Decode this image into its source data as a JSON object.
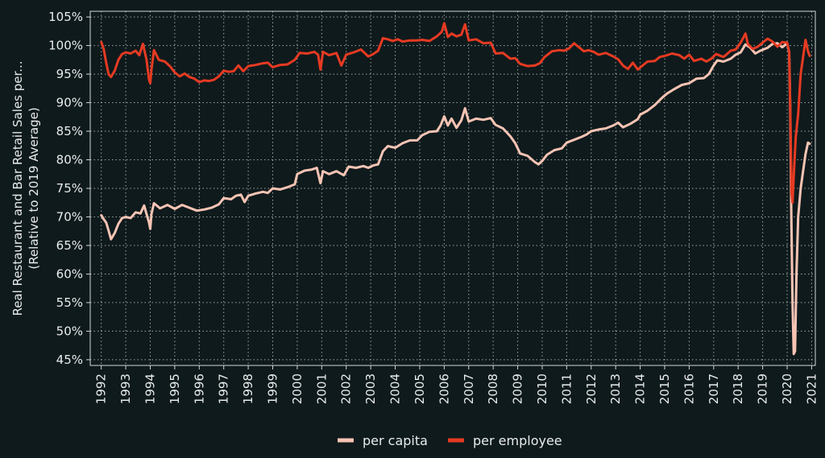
{
  "chart_data": {
    "type": "line",
    "title": "",
    "ylabel": "Real Restaurant and Bar Retail Sales per...",
    "ylabel2": "(Relative to 2019 Average)",
    "xlabel": "",
    "xlim": [
      1991.55,
      2021.15
    ],
    "ylim": [
      44,
      106
    ],
    "x_ticks": [
      1992,
      1993,
      1994,
      1995,
      1996,
      1997,
      1998,
      1999,
      2000,
      2001,
      2002,
      2003,
      2004,
      2005,
      2006,
      2007,
      2008,
      2009,
      2010,
      2011,
      2012,
      2013,
      2014,
      2015,
      2016,
      2017,
      2018,
      2019,
      2020,
      2021
    ],
    "x_tick_labels": [
      "1992",
      "1993",
      "1994",
      "1995",
      "1996",
      "1997",
      "1998",
      "1999",
      "2000",
      "2001",
      "2002",
      "2003",
      "2004",
      "2005",
      "2006",
      "2007",
      "2008",
      "2009",
      "2010",
      "2011",
      "2012",
      "2013",
      "2014",
      "2015",
      "2016",
      "2017",
      "2018",
      "2019",
      "2020",
      "2021"
    ],
    "y_ticks": [
      45,
      50,
      55,
      60,
      65,
      70,
      75,
      80,
      85,
      90,
      95,
      100,
      105
    ],
    "y_tick_labels": [
      "45%",
      "50%",
      "55%",
      "60%",
      "65%",
      "70%",
      "75%",
      "80%",
      "85%",
      "90%",
      "95%",
      "100%",
      "105%"
    ],
    "grid": true,
    "legend_position": "bottom-center",
    "series": [
      {
        "name": "per capita",
        "color": "#f7c4b4",
        "points": [
          [
            1992.0,
            70.3
          ],
          [
            1992.1,
            69.6
          ],
          [
            1992.2,
            69.0
          ],
          [
            1992.3,
            67.6
          ],
          [
            1992.4,
            66.1
          ],
          [
            1992.55,
            67.2
          ],
          [
            1992.7,
            68.8
          ],
          [
            1992.85,
            69.8
          ],
          [
            1993.0,
            70.0
          ],
          [
            1993.2,
            69.8
          ],
          [
            1993.4,
            70.8
          ],
          [
            1993.6,
            70.6
          ],
          [
            1993.75,
            72.0
          ],
          [
            1993.85,
            70.5
          ],
          [
            1993.95,
            69.0
          ],
          [
            1994.0,
            67.9
          ],
          [
            1994.05,
            70.5
          ],
          [
            1994.15,
            72.4
          ],
          [
            1994.4,
            71.5
          ],
          [
            1994.7,
            72.1
          ],
          [
            1995.0,
            71.4
          ],
          [
            1995.3,
            72.1
          ],
          [
            1995.6,
            71.6
          ],
          [
            1995.9,
            71.1
          ],
          [
            1996.2,
            71.3
          ],
          [
            1996.5,
            71.6
          ],
          [
            1996.8,
            72.2
          ],
          [
            1997.0,
            73.3
          ],
          [
            1997.3,
            73.1
          ],
          [
            1997.5,
            73.7
          ],
          [
            1997.7,
            73.9
          ],
          [
            1997.85,
            72.6
          ],
          [
            1998.0,
            73.7
          ],
          [
            1998.3,
            74.1
          ],
          [
            1998.6,
            74.4
          ],
          [
            1998.8,
            74.2
          ],
          [
            1999.0,
            75.0
          ],
          [
            1999.3,
            74.8
          ],
          [
            1999.6,
            75.2
          ],
          [
            1999.9,
            75.7
          ],
          [
            2000.0,
            77.5
          ],
          [
            2000.3,
            78.1
          ],
          [
            2000.6,
            78.3
          ],
          [
            2000.8,
            78.6
          ],
          [
            2000.95,
            75.9
          ],
          [
            2001.05,
            78.0
          ],
          [
            2001.3,
            77.5
          ],
          [
            2001.6,
            78.0
          ],
          [
            2001.9,
            77.3
          ],
          [
            2002.1,
            78.8
          ],
          [
            2002.4,
            78.6
          ],
          [
            2002.7,
            78.9
          ],
          [
            2002.9,
            78.6
          ],
          [
            2003.1,
            79.0
          ],
          [
            2003.3,
            79.2
          ],
          [
            2003.5,
            81.5
          ],
          [
            2003.7,
            82.4
          ],
          [
            2004.0,
            82.1
          ],
          [
            2004.3,
            82.9
          ],
          [
            2004.6,
            83.4
          ],
          [
            2004.9,
            83.4
          ],
          [
            2005.1,
            84.3
          ],
          [
            2005.4,
            84.9
          ],
          [
            2005.7,
            85.0
          ],
          [
            2005.85,
            86.0
          ],
          [
            2006.0,
            87.6
          ],
          [
            2006.15,
            86.0
          ],
          [
            2006.3,
            87.2
          ],
          [
            2006.5,
            85.6
          ],
          [
            2006.7,
            86.9
          ],
          [
            2006.85,
            89.0
          ],
          [
            2007.0,
            86.7
          ],
          [
            2007.3,
            87.2
          ],
          [
            2007.6,
            87.0
          ],
          [
            2007.9,
            87.3
          ],
          [
            2008.1,
            86.1
          ],
          [
            2008.4,
            85.5
          ],
          [
            2008.7,
            84.1
          ],
          [
            2008.9,
            82.9
          ],
          [
            2009.1,
            81.1
          ],
          [
            2009.4,
            80.7
          ],
          [
            2009.7,
            79.6
          ],
          [
            2009.85,
            79.2
          ],
          [
            2010.0,
            79.8
          ],
          [
            2010.2,
            80.9
          ],
          [
            2010.5,
            81.7
          ],
          [
            2010.8,
            82.0
          ],
          [
            2011.0,
            83.0
          ],
          [
            2011.3,
            83.5
          ],
          [
            2011.6,
            84.0
          ],
          [
            2011.8,
            84.4
          ],
          [
            2012.0,
            85.0
          ],
          [
            2012.3,
            85.3
          ],
          [
            2012.6,
            85.5
          ],
          [
            2012.9,
            86.0
          ],
          [
            2013.1,
            86.5
          ],
          [
            2013.3,
            85.7
          ],
          [
            2013.6,
            86.3
          ],
          [
            2013.9,
            87.1
          ],
          [
            2014.0,
            87.9
          ],
          [
            2014.3,
            88.6
          ],
          [
            2014.6,
            89.6
          ],
          [
            2014.9,
            90.9
          ],
          [
            2015.1,
            91.6
          ],
          [
            2015.4,
            92.4
          ],
          [
            2015.7,
            93.1
          ],
          [
            2016.0,
            93.4
          ],
          [
            2016.3,
            94.2
          ],
          [
            2016.6,
            94.3
          ],
          [
            2016.8,
            95.0
          ],
          [
            2017.0,
            96.5
          ],
          [
            2017.15,
            97.4
          ],
          [
            2017.4,
            97.2
          ],
          [
            2017.7,
            97.7
          ],
          [
            2017.9,
            98.4
          ],
          [
            2018.1,
            98.8
          ],
          [
            2018.3,
            100.2
          ],
          [
            2018.5,
            99.6
          ],
          [
            2018.7,
            98.6
          ],
          [
            2018.9,
            99.1
          ],
          [
            2019.2,
            99.6
          ],
          [
            2019.4,
            100.3
          ],
          [
            2019.6,
            100.4
          ],
          [
            2019.8,
            99.7
          ],
          [
            2020.0,
            100.4
          ],
          [
            2020.08,
            98.8
          ],
          [
            2020.12,
            90.0
          ],
          [
            2020.17,
            70.0
          ],
          [
            2020.22,
            55.0
          ],
          [
            2020.27,
            46.0
          ],
          [
            2020.32,
            46.5
          ],
          [
            2020.38,
            60.0
          ],
          [
            2020.45,
            70.0
          ],
          [
            2020.55,
            75.0
          ],
          [
            2020.65,
            78.0
          ],
          [
            2020.75,
            81.0
          ],
          [
            2020.85,
            83.0
          ],
          [
            2020.92,
            82.8
          ]
        ]
      },
      {
        "name": "per employee",
        "color": "#e63a22",
        "points": [
          [
            1992.0,
            100.6
          ],
          [
            1992.1,
            99.4
          ],
          [
            1992.2,
            97.0
          ],
          [
            1992.3,
            95.0
          ],
          [
            1992.4,
            94.5
          ],
          [
            1992.55,
            95.6
          ],
          [
            1992.7,
            97.5
          ],
          [
            1992.85,
            98.5
          ],
          [
            1993.0,
            98.8
          ],
          [
            1993.2,
            98.6
          ],
          [
            1993.4,
            99.1
          ],
          [
            1993.55,
            98.3
          ],
          [
            1993.7,
            100.3
          ],
          [
            1993.85,
            97.5
          ],
          [
            1993.95,
            94.0
          ],
          [
            1994.0,
            93.4
          ],
          [
            1994.05,
            95.8
          ],
          [
            1994.15,
            99.2
          ],
          [
            1994.35,
            97.5
          ],
          [
            1994.6,
            97.2
          ],
          [
            1994.8,
            96.4
          ],
          [
            1995.0,
            95.3
          ],
          [
            1995.2,
            94.6
          ],
          [
            1995.4,
            95.1
          ],
          [
            1995.6,
            94.5
          ],
          [
            1995.8,
            94.2
          ],
          [
            1996.0,
            93.6
          ],
          [
            1996.2,
            93.9
          ],
          [
            1996.4,
            93.8
          ],
          [
            1996.6,
            94.0
          ],
          [
            1996.8,
            94.6
          ],
          [
            1997.0,
            95.6
          ],
          [
            1997.2,
            95.4
          ],
          [
            1997.4,
            95.5
          ],
          [
            1997.6,
            96.5
          ],
          [
            1997.8,
            95.5
          ],
          [
            1998.0,
            96.4
          ],
          [
            1998.3,
            96.6
          ],
          [
            1998.6,
            96.9
          ],
          [
            1998.8,
            97.0
          ],
          [
            1999.0,
            96.2
          ],
          [
            1999.3,
            96.6
          ],
          [
            1999.6,
            96.7
          ],
          [
            1999.9,
            97.5
          ],
          [
            2000.1,
            98.7
          ],
          [
            2000.4,
            98.6
          ],
          [
            2000.7,
            98.9
          ],
          [
            2000.85,
            98.4
          ],
          [
            2000.95,
            95.8
          ],
          [
            2001.05,
            98.9
          ],
          [
            2001.3,
            98.3
          ],
          [
            2001.6,
            98.7
          ],
          [
            2001.8,
            96.5
          ],
          [
            2002.0,
            98.4
          ],
          [
            2002.3,
            98.8
          ],
          [
            2002.6,
            99.3
          ],
          [
            2002.9,
            98.1
          ],
          [
            2003.1,
            98.5
          ],
          [
            2003.3,
            99.1
          ],
          [
            2003.5,
            101.3
          ],
          [
            2003.7,
            101.1
          ],
          [
            2003.9,
            100.8
          ],
          [
            2004.1,
            101.1
          ],
          [
            2004.3,
            100.7
          ],
          [
            2004.6,
            100.9
          ],
          [
            2004.9,
            100.9
          ],
          [
            2005.1,
            101.0
          ],
          [
            2005.4,
            100.8
          ],
          [
            2005.7,
            101.6
          ],
          [
            2005.9,
            102.4
          ],
          [
            2006.0,
            103.9
          ],
          [
            2006.15,
            101.5
          ],
          [
            2006.3,
            102.1
          ],
          [
            2006.5,
            101.6
          ],
          [
            2006.7,
            101.9
          ],
          [
            2006.85,
            103.7
          ],
          [
            2007.0,
            100.9
          ],
          [
            2007.3,
            101.1
          ],
          [
            2007.6,
            100.4
          ],
          [
            2007.9,
            100.5
          ],
          [
            2008.1,
            98.6
          ],
          [
            2008.4,
            98.7
          ],
          [
            2008.7,
            97.7
          ],
          [
            2008.9,
            97.8
          ],
          [
            2009.1,
            96.8
          ],
          [
            2009.4,
            96.4
          ],
          [
            2009.7,
            96.5
          ],
          [
            2009.9,
            96.9
          ],
          [
            2010.1,
            98.0
          ],
          [
            2010.4,
            99.0
          ],
          [
            2010.7,
            99.2
          ],
          [
            2010.9,
            99.1
          ],
          [
            2011.1,
            99.5
          ],
          [
            2011.3,
            100.4
          ],
          [
            2011.5,
            99.7
          ],
          [
            2011.7,
            99.0
          ],
          [
            2011.9,
            99.2
          ],
          [
            2012.1,
            98.9
          ],
          [
            2012.3,
            98.4
          ],
          [
            2012.6,
            98.7
          ],
          [
            2012.9,
            98.1
          ],
          [
            2013.1,
            97.6
          ],
          [
            2013.3,
            96.5
          ],
          [
            2013.5,
            95.9
          ],
          [
            2013.7,
            97.0
          ],
          [
            2013.9,
            95.8
          ],
          [
            2014.1,
            96.5
          ],
          [
            2014.3,
            97.2
          ],
          [
            2014.6,
            97.3
          ],
          [
            2014.8,
            98.0
          ],
          [
            2015.0,
            98.2
          ],
          [
            2015.3,
            98.6
          ],
          [
            2015.6,
            98.3
          ],
          [
            2015.8,
            97.7
          ],
          [
            2016.0,
            98.4
          ],
          [
            2016.2,
            97.3
          ],
          [
            2016.5,
            97.7
          ],
          [
            2016.7,
            97.2
          ],
          [
            2016.9,
            97.7
          ],
          [
            2017.1,
            98.5
          ],
          [
            2017.4,
            98.0
          ],
          [
            2017.7,
            99.1
          ],
          [
            2017.9,
            99.3
          ],
          [
            2018.1,
            100.5
          ],
          [
            2018.3,
            102.1
          ],
          [
            2018.4,
            100.2
          ],
          [
            2018.6,
            99.4
          ],
          [
            2018.8,
            99.8
          ],
          [
            2019.0,
            100.5
          ],
          [
            2019.2,
            101.2
          ],
          [
            2019.4,
            100.7
          ],
          [
            2019.6,
            99.8
          ],
          [
            2019.8,
            100.6
          ],
          [
            2020.0,
            100.5
          ],
          [
            2020.08,
            99.0
          ],
          [
            2020.13,
            88.0
          ],
          [
            2020.18,
            74.0
          ],
          [
            2020.22,
            72.5
          ],
          [
            2020.28,
            78.0
          ],
          [
            2020.35,
            84.0
          ],
          [
            2020.45,
            88.0
          ],
          [
            2020.55,
            95.0
          ],
          [
            2020.65,
            98.0
          ],
          [
            2020.75,
            101.0
          ],
          [
            2020.85,
            99.0
          ],
          [
            2020.92,
            98.2
          ]
        ]
      }
    ]
  }
}
